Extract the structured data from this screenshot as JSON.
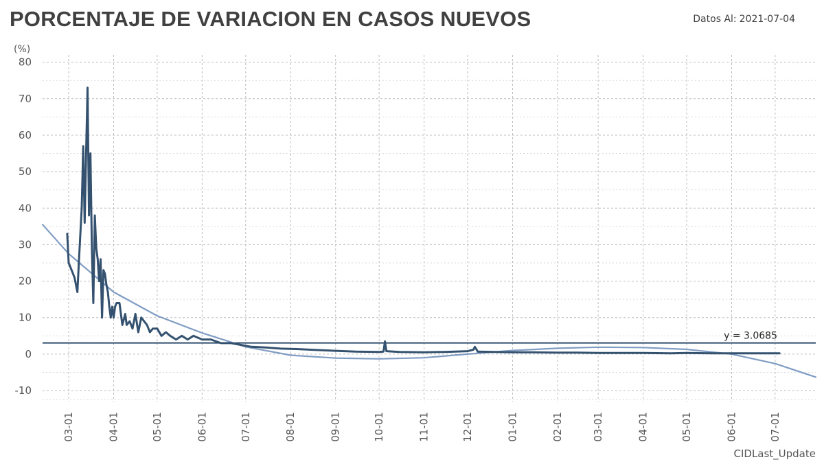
{
  "header": {
    "title": "PORCENTAJE DE VARIACION EN CASOS NUEVOS",
    "date_label": "Datos Al:",
    "date_value": "2021-07-04"
  },
  "chart_data": {
    "type": "line",
    "unit_label": "(%)",
    "xlabel": "CIDLast_Update",
    "ylabel": "",
    "ylim": [
      -13,
      82
    ],
    "y_ticks": [
      -10,
      0,
      10,
      20,
      30,
      40,
      50,
      60,
      70,
      80
    ],
    "x_range": [
      "2020-02-12",
      "2021-07-29"
    ],
    "x_ticks": [
      {
        "date": "2020-03-01",
        "label": "03-01"
      },
      {
        "date": "2020-04-01",
        "label": "04-01"
      },
      {
        "date": "2020-05-01",
        "label": "05-01"
      },
      {
        "date": "2020-06-01",
        "label": "06-01"
      },
      {
        "date": "2020-07-01",
        "label": "07-01"
      },
      {
        "date": "2020-08-01",
        "label": "08-01"
      },
      {
        "date": "2020-09-01",
        "label": "09-01"
      },
      {
        "date": "2020-10-01",
        "label": "10-01"
      },
      {
        "date": "2020-11-01",
        "label": "11-01"
      },
      {
        "date": "2020-12-01",
        "label": "12-01"
      },
      {
        "date": "2021-01-01",
        "label": "01-01"
      },
      {
        "date": "2021-02-01",
        "label": "02-01"
      },
      {
        "date": "2021-03-01",
        "label": "03-01"
      },
      {
        "date": "2021-04-01",
        "label": "04-01"
      },
      {
        "date": "2021-05-01",
        "label": "05-01"
      },
      {
        "date": "2021-06-01",
        "label": "06-01"
      },
      {
        "date": "2021-07-01",
        "label": "07-01"
      }
    ],
    "grid": true,
    "colors": {
      "series": "#34526f",
      "trend": "#7f9cc3",
      "reference": "#2f4e6e",
      "grid": "#bdbdbd"
    },
    "series": [
      {
        "x": [
          "2020-02-29",
          "2020-03-01",
          "2020-03-03",
          "2020-03-05",
          "2020-03-07",
          "2020-03-08",
          "2020-03-10",
          "2020-03-11",
          "2020-03-12",
          "2020-03-13",
          "2020-03-14",
          "2020-03-15",
          "2020-03-16",
          "2020-03-17",
          "2020-03-18",
          "2020-03-19",
          "2020-03-20",
          "2020-03-21",
          "2020-03-22",
          "2020-03-23",
          "2020-03-24",
          "2020-03-25",
          "2020-03-26",
          "2020-03-27",
          "2020-03-28",
          "2020-03-29",
          "2020-03-30",
          "2020-03-31",
          "2020-04-01",
          "2020-04-02",
          "2020-04-03",
          "2020-04-05",
          "2020-04-07",
          "2020-04-09",
          "2020-04-10",
          "2020-04-12",
          "2020-04-14",
          "2020-04-16",
          "2020-04-18",
          "2020-04-20",
          "2020-04-22",
          "2020-04-24",
          "2020-04-26",
          "2020-04-28",
          "2020-05-01",
          "2020-05-04",
          "2020-05-07",
          "2020-05-10",
          "2020-05-14",
          "2020-05-18",
          "2020-05-22",
          "2020-05-26",
          "2020-06-01",
          "2020-06-07",
          "2020-06-14",
          "2020-06-21",
          "2020-06-28",
          "2020-07-05",
          "2020-07-15",
          "2020-07-25",
          "2020-08-05",
          "2020-08-20",
          "2020-09-01",
          "2020-09-15",
          "2020-10-01",
          "2020-10-04",
          "2020-10-05",
          "2020-10-06",
          "2020-10-15",
          "2020-11-01",
          "2020-11-15",
          "2020-12-01",
          "2020-12-05",
          "2020-12-06",
          "2020-12-08",
          "2020-12-20",
          "2021-01-01",
          "2021-01-15",
          "2021-02-01",
          "2021-02-15",
          "2021-03-01",
          "2021-03-20",
          "2021-04-01",
          "2021-04-20",
          "2021-05-01",
          "2021-05-20",
          "2021-06-01",
          "2021-06-15",
          "2021-07-01",
          "2021-07-04"
        ],
        "y": [
          33,
          25,
          23,
          21,
          17,
          25,
          40,
          57,
          36,
          55,
          73,
          38,
          55,
          29,
          14,
          38,
          29,
          26,
          20,
          26,
          10,
          23,
          22,
          19,
          17,
          13,
          10,
          13,
          10,
          13,
          14,
          14,
          8,
          11,
          8,
          9,
          7,
          11,
          6,
          10,
          9,
          8,
          6,
          7,
          7,
          5,
          6,
          5,
          4,
          5,
          4,
          5,
          4,
          4,
          3,
          3,
          2.5,
          2,
          1.8,
          1.5,
          1.4,
          1.1,
          0.9,
          0.7,
          0.6,
          0.7,
          3.5,
          0.8,
          0.6,
          0.5,
          0.6,
          0.8,
          1.2,
          2,
          0.7,
          0.6,
          0.5,
          0.5,
          0.4,
          0.4,
          0.3,
          0.3,
          0.3,
          0.2,
          0.3,
          0.2,
          0.2,
          0.2,
          0.2,
          0.2
        ]
      },
      {
        "x": [
          "2020-02-12",
          "2020-03-01",
          "2020-04-01",
          "2020-05-01",
          "2020-06-01",
          "2020-07-01",
          "2020-08-01",
          "2020-09-01",
          "2020-10-01",
          "2020-11-01",
          "2020-12-01",
          "2021-01-01",
          "2021-02-01",
          "2021-03-01",
          "2021-04-01",
          "2021-05-01",
          "2021-06-01",
          "2021-07-01",
          "2021-07-29"
        ],
        "y": [
          35.5,
          27.5,
          17,
          10.5,
          5.8,
          2,
          -0.3,
          -1.1,
          -1.3,
          -1,
          0,
          1,
          1.6,
          1.9,
          1.8,
          1.3,
          0,
          -2.6,
          -6.3
        ]
      }
    ],
    "reference_line": {
      "y": 3.0685,
      "label": "y = 3.0685"
    }
  }
}
